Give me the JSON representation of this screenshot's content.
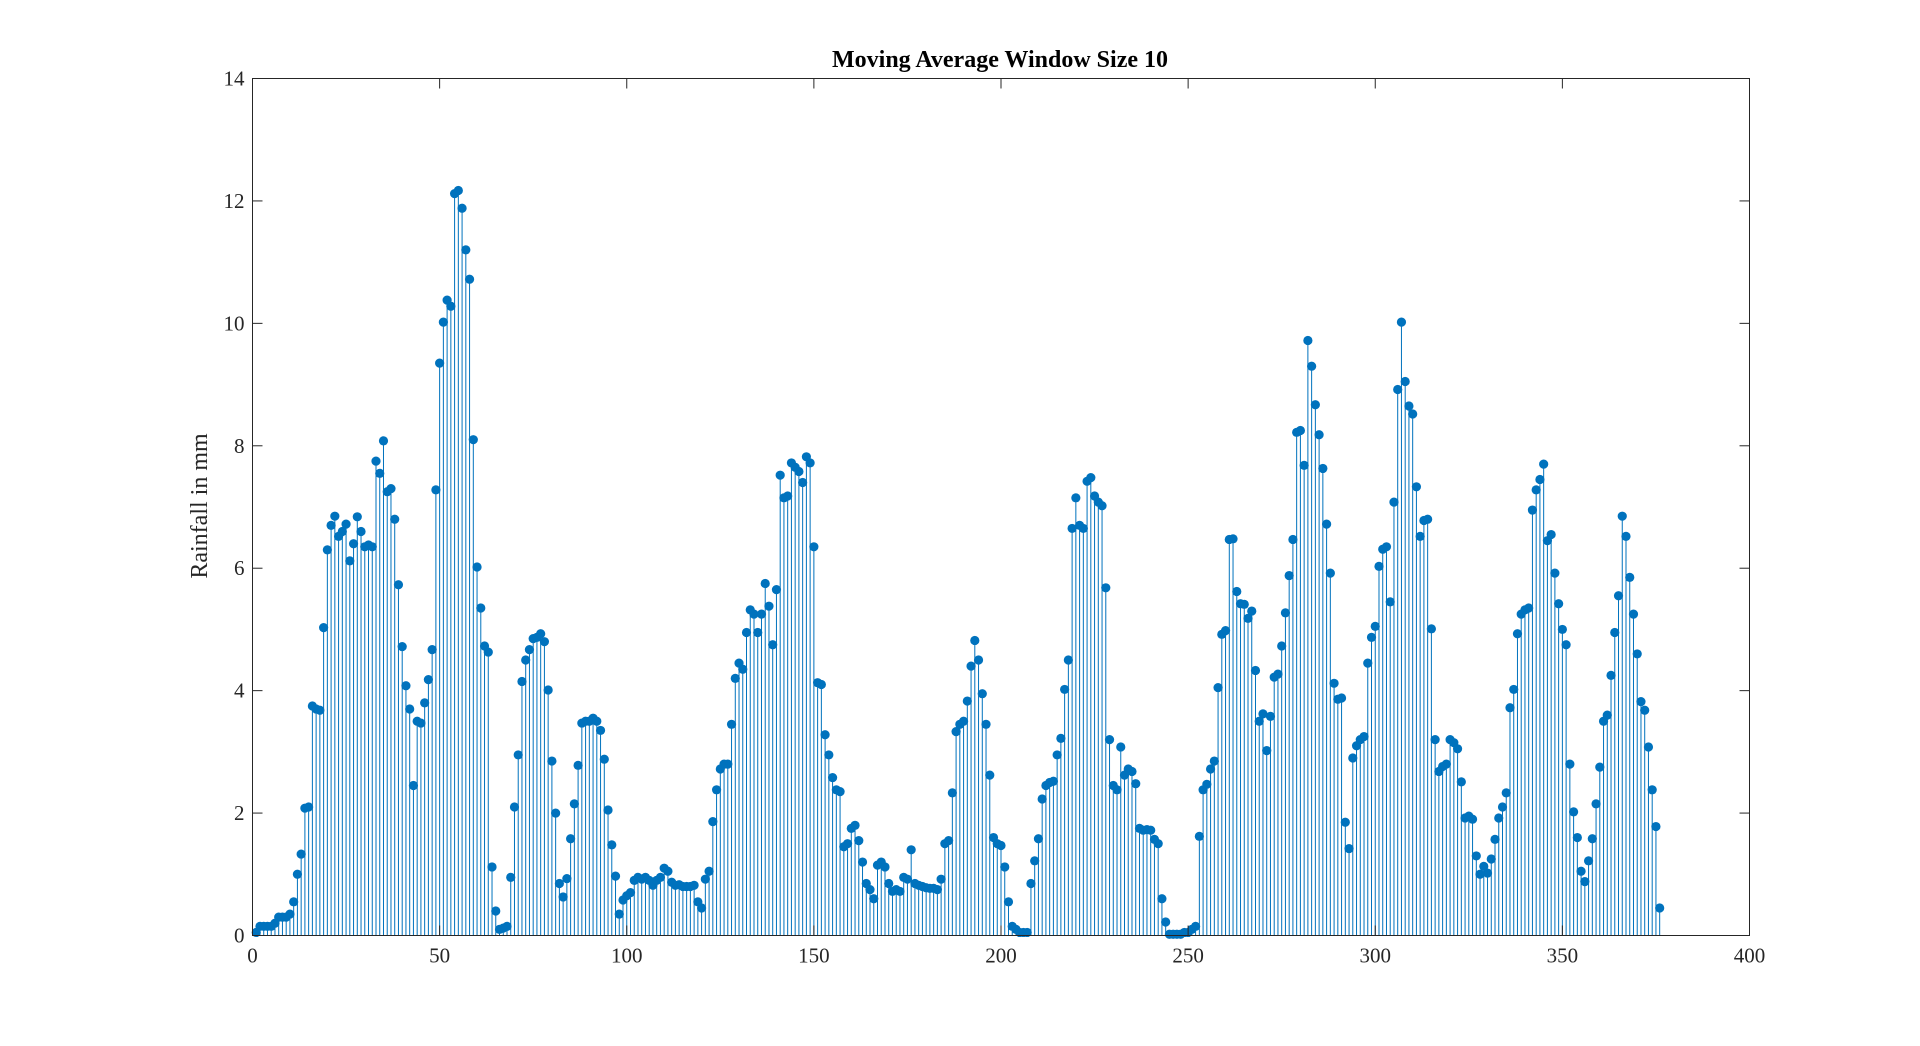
{
  "chart_data": {
    "type": "stem",
    "title": "Moving Average Window Size 10",
    "xlabel": "",
    "ylabel": "Rainfall in mm",
    "xlim": [
      0,
      400
    ],
    "ylim": [
      0,
      14
    ],
    "xticks": [
      0,
      50,
      100,
      150,
      200,
      250,
      300,
      350,
      400
    ],
    "yticks": [
      0,
      2,
      4,
      6,
      8,
      10,
      12,
      14
    ],
    "grid": false,
    "color": "#0072bd",
    "x_start": 1,
    "values": [
      0.05,
      0.15,
      0.15,
      0.15,
      0.15,
      0.2,
      0.3,
      0.3,
      0.3,
      0.35,
      0.55,
      1.0,
      1.33,
      2.08,
      2.1,
      3.75,
      3.7,
      3.68,
      5.03,
      6.3,
      6.7,
      6.85,
      6.52,
      6.6,
      6.72,
      6.12,
      6.4,
      6.84,
      6.6,
      6.35,
      6.38,
      6.35,
      7.75,
      7.55,
      8.08,
      7.25,
      7.3,
      6.8,
      5.73,
      4.72,
      4.08,
      3.7,
      2.45,
      3.5,
      3.47,
      3.8,
      4.18,
      4.67,
      7.28,
      9.35,
      10.02,
      10.38,
      10.28,
      12.12,
      12.17,
      11.88,
      11.2,
      10.72,
      8.1,
      6.02,
      5.35,
      4.73,
      4.63,
      1.12,
      0.4,
      0.1,
      0.12,
      0.15,
      0.95,
      2.1,
      2.95,
      4.15,
      4.5,
      4.67,
      4.85,
      4.87,
      4.93,
      4.8,
      4.01,
      2.85,
      2.0,
      0.85,
      0.63,
      0.93,
      1.58,
      2.15,
      2.78,
      3.47,
      3.5,
      3.5,
      3.55,
      3.5,
      3.35,
      2.88,
      2.05,
      1.48,
      0.97,
      0.35,
      0.58,
      0.65,
      0.7,
      0.9,
      0.95,
      0.92,
      0.95,
      0.9,
      0.82,
      0.9,
      0.95,
      1.1,
      1.05,
      0.87,
      0.82,
      0.83,
      0.8,
      0.8,
      0.8,
      0.82,
      0.55,
      0.45,
      0.92,
      1.05,
      1.86,
      2.38,
      2.72,
      2.8,
      2.8,
      3.45,
      4.2,
      4.45,
      4.35,
      4.95,
      5.32,
      5.25,
      4.95,
      5.25,
      5.75,
      5.38,
      4.75,
      5.65,
      7.52,
      7.15,
      7.18,
      7.72,
      7.65,
      7.58,
      7.4,
      7.82,
      7.72,
      6.35,
      4.13,
      4.1,
      3.28,
      2.95,
      2.58,
      2.38,
      2.35,
      1.45,
      1.5,
      1.75,
      1.8,
      1.55,
      1.2,
      0.85,
      0.75,
      0.6,
      1.15,
      1.2,
      1.12,
      0.85,
      0.72,
      0.75,
      0.72,
      0.95,
      0.92,
      1.4,
      0.85,
      0.82,
      0.8,
      0.78,
      0.77,
      0.77,
      0.75,
      0.92,
      1.5,
      1.55,
      2.33,
      3.33,
      3.45,
      3.5,
      3.83,
      4.4,
      4.82,
      4.5,
      3.95,
      3.45,
      2.62,
      1.6,
      1.5,
      1.47,
      1.12,
      0.55,
      0.15,
      0.1,
      0.05,
      0.05,
      0.05,
      0.85,
      1.22,
      1.58,
      2.23,
      2.45,
      2.5,
      2.52,
      2.95,
      3.22,
      4.02,
      4.5,
      6.65,
      7.15,
      6.7,
      6.65,
      7.42,
      7.48,
      7.18,
      7.08,
      7.02,
      5.68,
      3.2,
      2.45,
      2.38,
      3.08,
      2.62,
      2.72,
      2.68,
      2.48,
      1.75,
      1.72,
      1.73,
      1.72,
      1.57,
      1.5,
      0.6,
      0.22,
      0.02,
      0.02,
      0.02,
      0.02,
      0.05,
      0.05,
      0.1,
      0.15,
      1.62,
      2.38,
      2.47,
      2.72,
      2.85,
      4.05,
      4.92,
      4.98,
      6.47,
      6.48,
      5.62,
      5.42,
      5.41,
      5.18,
      5.3,
      4.33,
      3.5,
      3.62,
      3.02,
      3.58,
      4.22,
      4.27,
      4.73,
      5.27,
      5.88,
      6.47,
      8.22,
      8.25,
      7.68,
      9.72,
      9.3,
      8.67,
      8.18,
      7.63,
      6.72,
      5.92,
      4.12,
      3.86,
      3.88,
      1.85,
      1.42,
      2.9,
      3.1,
      3.2,
      3.25,
      4.45,
      4.87,
      5.05,
      6.03,
      6.31,
      6.35,
      5.45,
      7.08,
      8.92,
      10.02,
      9.05,
      8.65,
      8.52,
      7.33,
      6.52,
      6.78,
      6.8,
      5.01,
      3.2,
      2.68,
      2.76,
      2.8,
      3.2,
      3.15,
      3.05,
      2.51,
      1.92,
      1.95,
      1.9,
      1.3,
      1.0,
      1.13,
      1.02,
      1.25,
      1.57,
      1.92,
      2.1,
      2.33,
      3.72,
      4.02,
      4.93,
      5.25,
      5.32,
      5.35,
      6.95,
      7.28,
      7.45,
      7.7,
      6.45,
      6.55,
      5.92,
      5.42,
      5.0,
      4.75,
      2.8,
      2.02,
      1.6,
      1.05,
      0.88,
      1.22,
      1.58,
      2.15,
      2.75,
      3.5,
      3.6,
      4.25,
      4.95,
      5.55,
      6.85,
      6.52,
      5.85,
      5.25,
      4.6,
      3.82,
      3.68,
      3.08,
      2.38,
      1.78,
      0.45
    ]
  }
}
